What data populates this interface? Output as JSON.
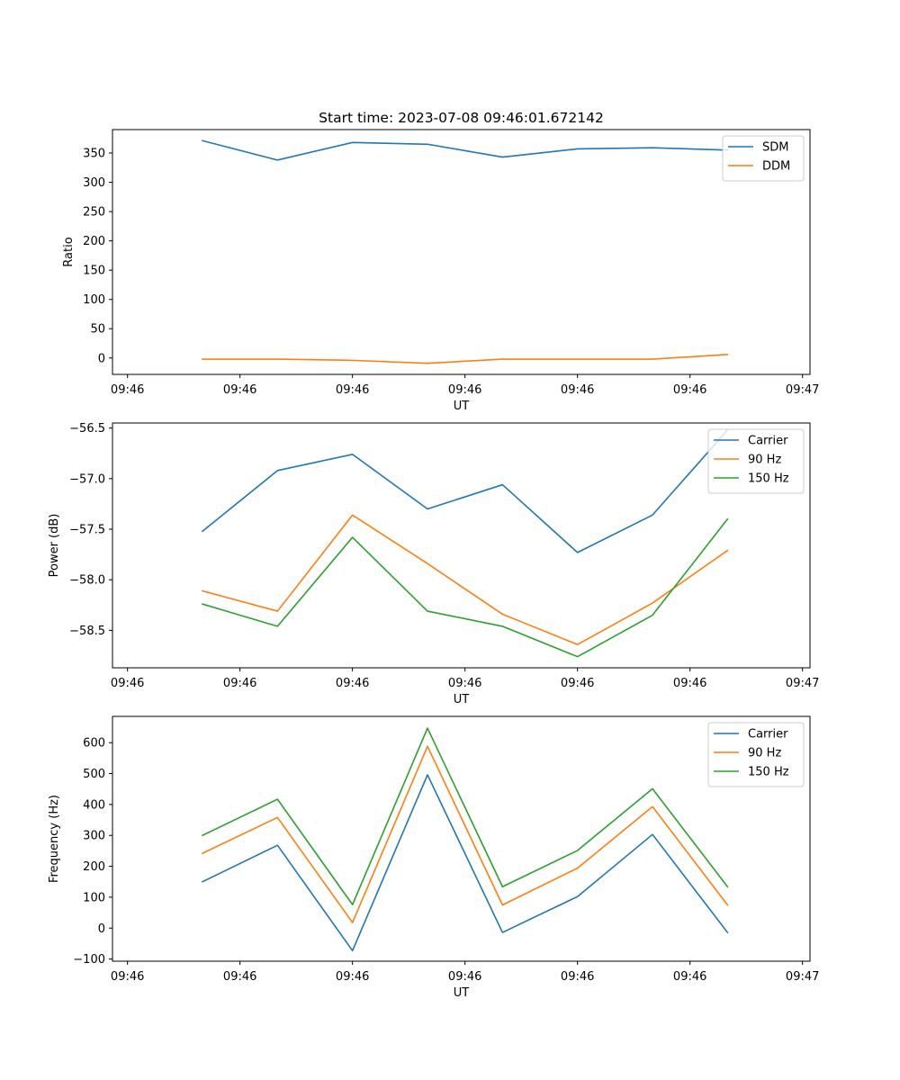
{
  "figure_title": "Start time: 2023-07-08 09:46:01.672142",
  "chart_data": [
    {
      "type": "line",
      "title": "Start time: 2023-07-08 09:46:01.672142",
      "xlabel": "UT",
      "ylabel": "Ratio",
      "x": [
        1,
        2,
        3,
        4,
        5,
        6,
        7,
        8
      ],
      "xlim": [
        -0.2,
        9.1
      ],
      "xticks": [
        0,
        1.5,
        3,
        4.5,
        6,
        7.5,
        9
      ],
      "xtick_labels": [
        "09:46",
        "09:46",
        "09:46",
        "09:46",
        "09:46",
        "09:46",
        "09:47"
      ],
      "ylim": [
        -28,
        390
      ],
      "yticks": [
        0,
        50,
        100,
        150,
        200,
        250,
        300,
        350
      ],
      "ytick_labels": [
        "0",
        "50",
        "100",
        "150",
        "200",
        "250",
        "300",
        "350"
      ],
      "legend_position": "top-right",
      "series": [
        {
          "name": "SDM",
          "color": "#1f77b4",
          "values": [
            371,
            338,
            368,
            365,
            343,
            357,
            359,
            355
          ]
        },
        {
          "name": "DDM",
          "color": "#ff7f0e",
          "values": [
            -2,
            -2,
            -4,
            -9,
            -2,
            -2,
            -2,
            6
          ]
        }
      ]
    },
    {
      "type": "line",
      "title": "",
      "xlabel": "UT",
      "ylabel": "Power (dB)",
      "x": [
        1,
        2,
        3,
        4,
        5,
        6,
        7,
        8
      ],
      "xlim": [
        -0.2,
        9.1
      ],
      "xticks": [
        0,
        1.5,
        3,
        4.5,
        6,
        7.5,
        9
      ],
      "xtick_labels": [
        "09:46",
        "09:46",
        "09:46",
        "09:46",
        "09:46",
        "09:46",
        "09:47"
      ],
      "ylim": [
        -58.87,
        -56.45
      ],
      "yticks": [
        -58.5,
        -58.0,
        -57.5,
        -57.0,
        -56.5
      ],
      "ytick_labels": [
        "−58.5",
        "−58.0",
        "−57.5",
        "−57.0",
        "−56.5"
      ],
      "legend_position": "top-right",
      "series": [
        {
          "name": "Carrier",
          "color": "#1f77b4",
          "values": [
            -57.52,
            -56.92,
            -56.76,
            -57.3,
            -57.06,
            -57.73,
            -57.36,
            -56.52
          ]
        },
        {
          "name": "90 Hz",
          "color": "#ff7f0e",
          "values": [
            -58.11,
            -58.31,
            -57.36,
            -57.84,
            -58.34,
            -58.64,
            -58.23,
            -57.71
          ]
        },
        {
          "name": "150 Hz",
          "color": "#2ca02c",
          "values": [
            -58.24,
            -58.46,
            -57.58,
            -58.31,
            -58.46,
            -58.76,
            -58.35,
            -57.4
          ]
        }
      ]
    },
    {
      "type": "line",
      "title": "",
      "xlabel": "UT",
      "ylabel": "Frequency (Hz)",
      "x": [
        1,
        2,
        3,
        4,
        5,
        6,
        7,
        8
      ],
      "xlim": [
        -0.2,
        9.1
      ],
      "xticks": [
        0,
        1.5,
        3,
        4.5,
        6,
        7.5,
        9
      ],
      "xtick_labels": [
        "09:46",
        "09:46",
        "09:46",
        "09:46",
        "09:46",
        "09:46",
        "09:47"
      ],
      "ylim": [
        -107,
        685
      ],
      "yticks": [
        -100,
        0,
        100,
        200,
        300,
        400,
        500,
        600
      ],
      "ytick_labels": [
        "−100",
        "0",
        "100",
        "200",
        "300",
        "400",
        "500",
        "600"
      ],
      "legend_position": "top-right",
      "series": [
        {
          "name": "Carrier",
          "color": "#1f77b4",
          "values": [
            150,
            268,
            -73,
            496,
            -14,
            102,
            303,
            -14
          ]
        },
        {
          "name": "90 Hz",
          "color": "#ff7f0e",
          "values": [
            242,
            358,
            18,
            588,
            75,
            194,
            393,
            75
          ]
        },
        {
          "name": "150 Hz",
          "color": "#2ca02c",
          "values": [
            300,
            417,
            76,
            647,
            134,
            251,
            451,
            134
          ]
        }
      ]
    }
  ]
}
